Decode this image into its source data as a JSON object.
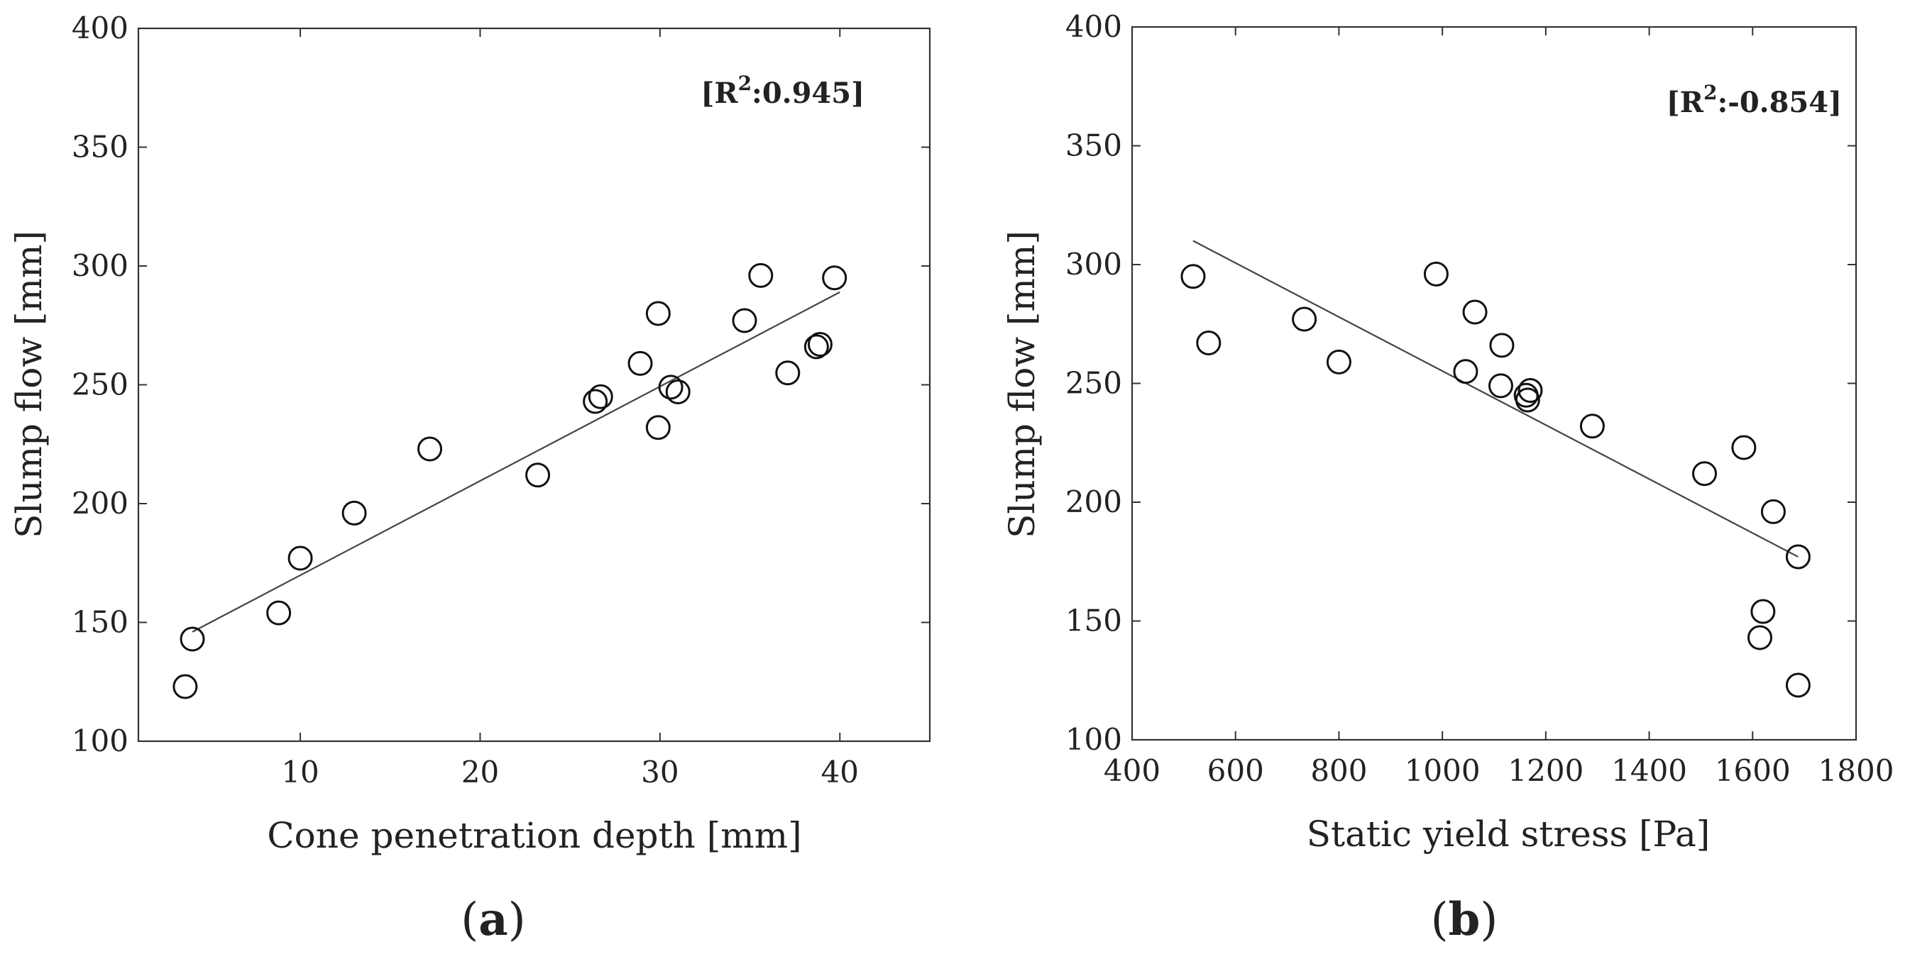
{
  "chart_data": [
    {
      "type": "scatter",
      "panel_label": "a",
      "title": "",
      "xlabel": "Cone penetration depth [mm]",
      "ylabel": "Slump flow [mm]",
      "xlim": [
        1,
        45
      ],
      "ylim": [
        100,
        400
      ],
      "xticks": [
        10,
        20,
        30,
        40
      ],
      "yticks": [
        100,
        150,
        200,
        250,
        300,
        350,
        400
      ],
      "grid": false,
      "annotation": {
        "prefix": "[R",
        "sup": "2",
        "text": ":0.945]"
      },
      "points": [
        {
          "x": 3.6,
          "y": 123
        },
        {
          "x": 4.0,
          "y": 143
        },
        {
          "x": 8.8,
          "y": 154
        },
        {
          "x": 10.0,
          "y": 177
        },
        {
          "x": 13.0,
          "y": 196
        },
        {
          "x": 17.2,
          "y": 223
        },
        {
          "x": 23.2,
          "y": 212
        },
        {
          "x": 26.4,
          "y": 243
        },
        {
          "x": 26.7,
          "y": 245
        },
        {
          "x": 28.9,
          "y": 259
        },
        {
          "x": 29.9,
          "y": 280
        },
        {
          "x": 29.9,
          "y": 232
        },
        {
          "x": 30.6,
          "y": 249
        },
        {
          "x": 31.0,
          "y": 247
        },
        {
          "x": 34.7,
          "y": 277
        },
        {
          "x": 35.6,
          "y": 296
        },
        {
          "x": 37.1,
          "y": 255
        },
        {
          "x": 38.7,
          "y": 266
        },
        {
          "x": 38.9,
          "y": 267
        },
        {
          "x": 39.7,
          "y": 295
        }
      ],
      "fit_line": [
        {
          "x": 4.0,
          "y": 146
        },
        {
          "x": 40.0,
          "y": 289
        }
      ]
    },
    {
      "type": "scatter",
      "panel_label": "b",
      "title": "",
      "xlabel": "Static yield stress [Pa]",
      "ylabel": "Slump flow [mm]",
      "xlim": [
        400,
        1800
      ],
      "ylim": [
        100,
        400
      ],
      "xticks": [
        400,
        600,
        800,
        1000,
        1200,
        1400,
        1600,
        1800
      ],
      "yticks": [
        100,
        150,
        200,
        250,
        300,
        350,
        400
      ],
      "grid": false,
      "annotation": {
        "prefix": "[R",
        "sup": "2",
        "text": ":-0.854]"
      },
      "points": [
        {
          "x": 518,
          "y": 295
        },
        {
          "x": 548,
          "y": 267
        },
        {
          "x": 733,
          "y": 277
        },
        {
          "x": 800,
          "y": 259
        },
        {
          "x": 988,
          "y": 296
        },
        {
          "x": 1045,
          "y": 255
        },
        {
          "x": 1063,
          "y": 280
        },
        {
          "x": 1113,
          "y": 249
        },
        {
          "x": 1115,
          "y": 266
        },
        {
          "x": 1162,
          "y": 245
        },
        {
          "x": 1165,
          "y": 243
        },
        {
          "x": 1170,
          "y": 247
        },
        {
          "x": 1290,
          "y": 232
        },
        {
          "x": 1507,
          "y": 212
        },
        {
          "x": 1583,
          "y": 223
        },
        {
          "x": 1614,
          "y": 143
        },
        {
          "x": 1620,
          "y": 154
        },
        {
          "x": 1640,
          "y": 196
        },
        {
          "x": 1688,
          "y": 177
        },
        {
          "x": 1688,
          "y": 123
        }
      ],
      "fit_line": [
        {
          "x": 518,
          "y": 310
        },
        {
          "x": 1688,
          "y": 177
        }
      ]
    }
  ]
}
